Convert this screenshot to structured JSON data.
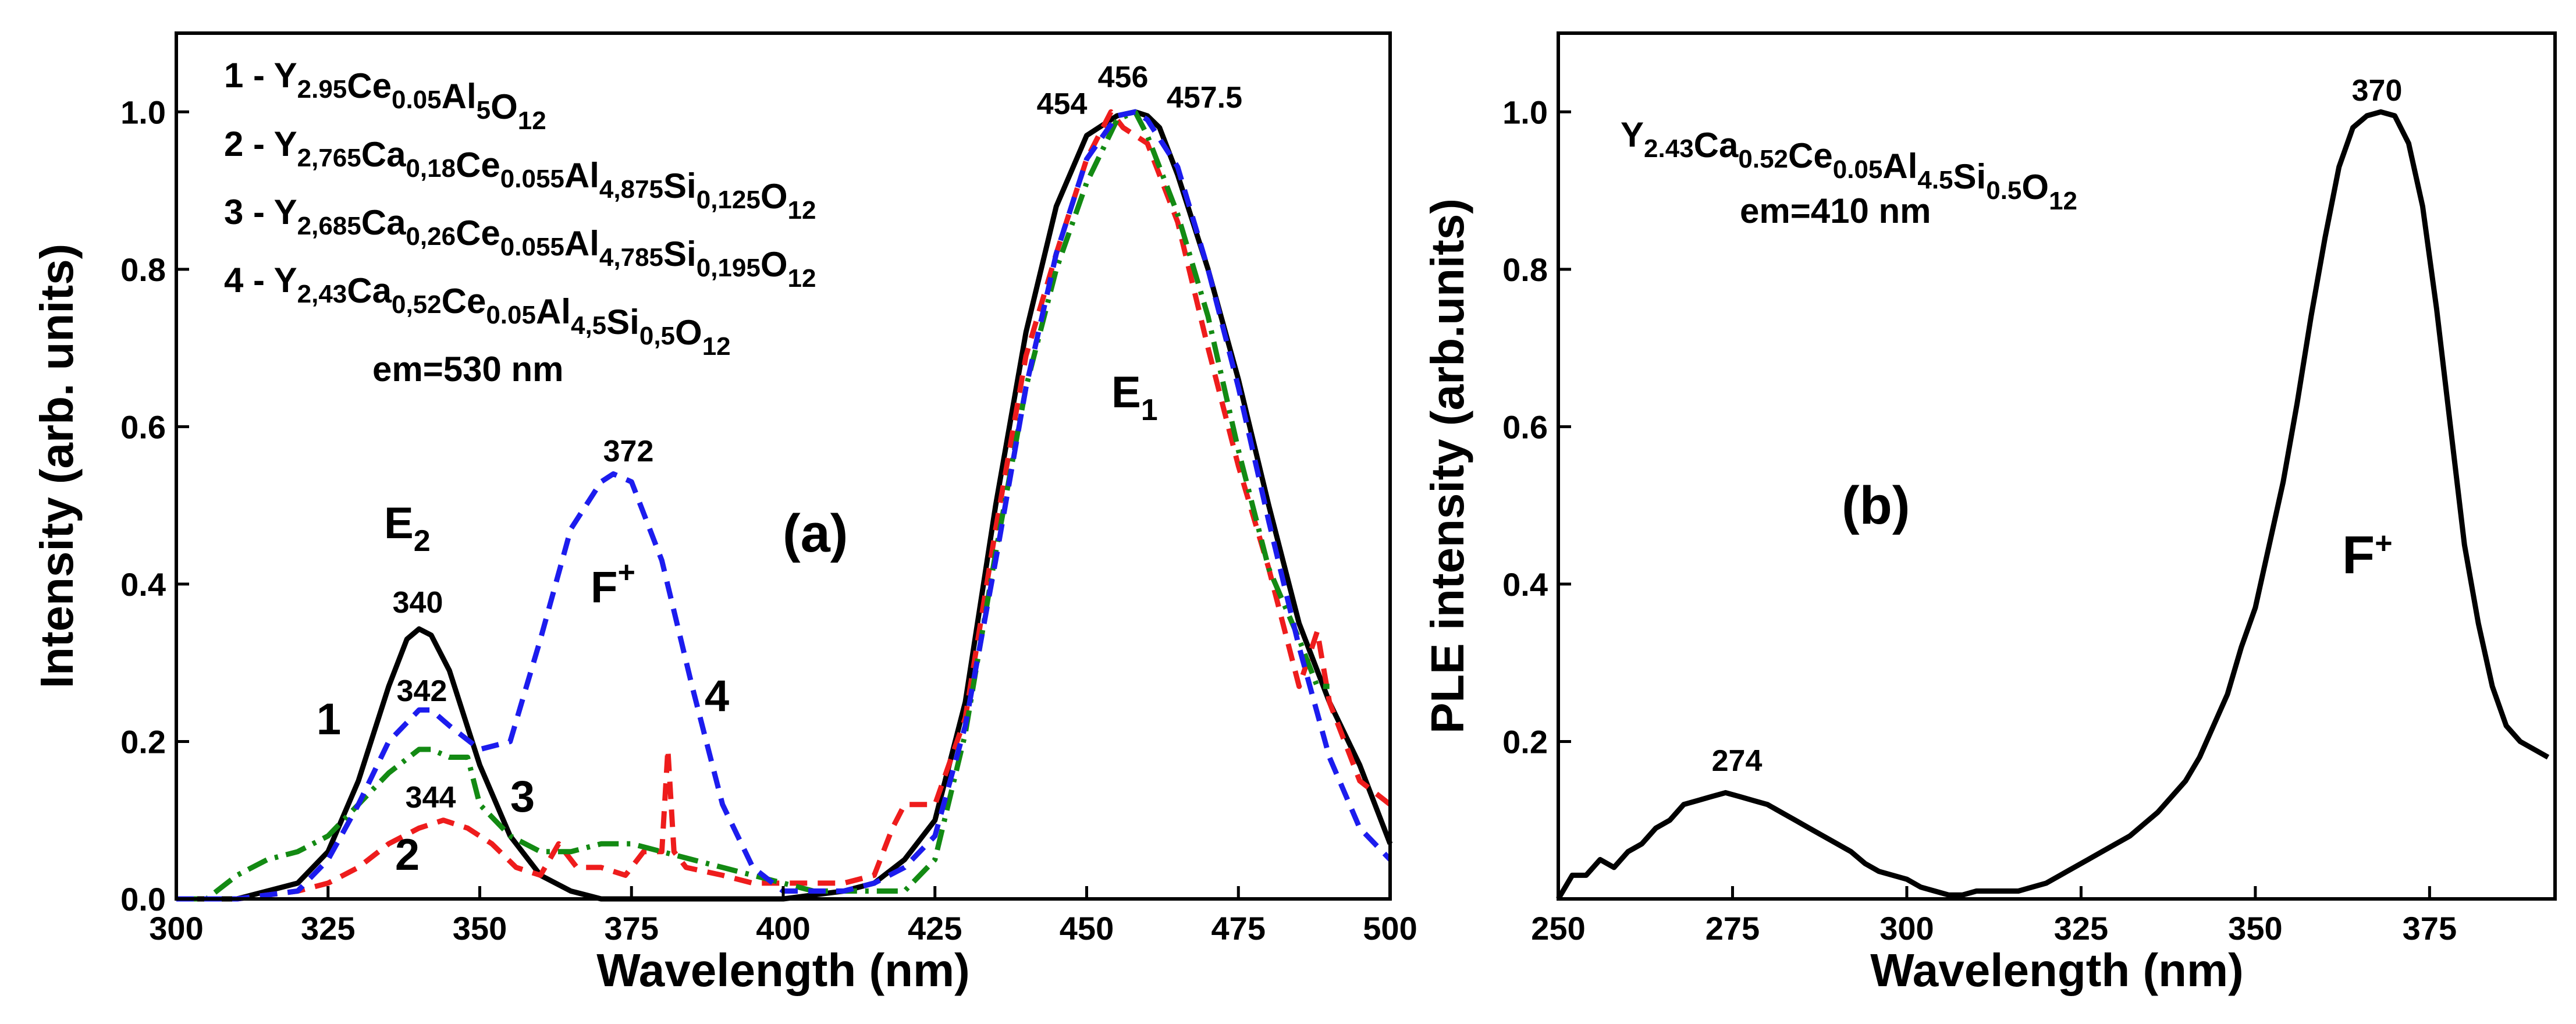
{
  "chart_data": [
    {
      "id": "a",
      "type": "line",
      "panel_label": "(a)",
      "xlabel": "Wavelength (nm)",
      "ylabel": "Intensity (arb. units)",
      "xlim": [
        300,
        500
      ],
      "ylim": [
        0,
        1.1
      ],
      "xticks": [
        "300",
        "325",
        "350",
        "375",
        "400",
        "425",
        "450",
        "475",
        "500"
      ],
      "yticks": [
        "0.0",
        "0.2",
        "0.4",
        "0.6",
        "0.8",
        "1.0"
      ],
      "legend": [
        {
          "num": "1 - ",
          "parts": [
            [
              "Y",
              ""
            ],
            [
              "2.95",
              "sub"
            ],
            [
              "Ce",
              ""
            ],
            [
              "0.05",
              "sub"
            ],
            [
              "Al",
              ""
            ],
            [
              "5",
              "sub"
            ],
            [
              "O",
              ""
            ],
            [
              "12",
              "sub"
            ]
          ]
        },
        {
          "num": "2 - ",
          "parts": [
            [
              "Y",
              ""
            ],
            [
              "2,765",
              "sub"
            ],
            [
              "Ca",
              ""
            ],
            [
              "0,18",
              "sub"
            ],
            [
              "Ce",
              ""
            ],
            [
              "0.055",
              "sub"
            ],
            [
              "Al",
              ""
            ],
            [
              "4,875",
              "sub"
            ],
            [
              "Si",
              ""
            ],
            [
              "0,125",
              "sub"
            ],
            [
              "O",
              ""
            ],
            [
              "12",
              "sub"
            ]
          ]
        },
        {
          "num": "3 - ",
          "parts": [
            [
              "Y",
              ""
            ],
            [
              "2,685",
              "sub"
            ],
            [
              "Ca",
              ""
            ],
            [
              "0,26",
              "sub"
            ],
            [
              "Ce",
              ""
            ],
            [
              "0.055",
              "sub"
            ],
            [
              "Al",
              ""
            ],
            [
              "4,785",
              "sub"
            ],
            [
              "Si",
              ""
            ],
            [
              "0,195",
              "sub"
            ],
            [
              "O",
              ""
            ],
            [
              "12",
              "sub"
            ]
          ]
        },
        {
          "num": "4 - ",
          "parts": [
            [
              "Y",
              ""
            ],
            [
              "2,43",
              "sub"
            ],
            [
              "Ca",
              ""
            ],
            [
              "0,52",
              "sub"
            ],
            [
              "Ce",
              ""
            ],
            [
              "0.05",
              "sub"
            ],
            [
              "Al",
              ""
            ],
            [
              "4,5",
              "sub"
            ],
            [
              "Si",
              ""
            ],
            [
              "0,5",
              "sub"
            ],
            [
              "O",
              ""
            ],
            [
              "12",
              "sub"
            ]
          ]
        }
      ],
      "em_text": "em=530 nm",
      "band_labels": {
        "E2": {
          "main": "E",
          "sub": "2"
        },
        "Fplus": {
          "main": "F",
          "sup": "+"
        },
        "E1": {
          "main": "E",
          "sub": "1"
        }
      },
      "curve_numbers": [
        "1",
        "2",
        "3",
        "4"
      ],
      "peak_labels": [
        "340",
        "342",
        "344",
        "372",
        "454",
        "456",
        "457.5"
      ],
      "series": [
        {
          "name": "1",
          "color": "#000000",
          "dash": "solid",
          "x": [
            300,
            310,
            320,
            325,
            330,
            335,
            338,
            340,
            342,
            345,
            350,
            355,
            360,
            365,
            370,
            380,
            390,
            400,
            410,
            415,
            420,
            425,
            430,
            435,
            440,
            445,
            450,
            455,
            458,
            460,
            462,
            465,
            470,
            475,
            480,
            485,
            490,
            495,
            500
          ],
          "y": [
            0.0,
            0.0,
            0.02,
            0.06,
            0.15,
            0.27,
            0.33,
            0.343,
            0.335,
            0.29,
            0.17,
            0.08,
            0.03,
            0.01,
            0.0,
            0.0,
            0.0,
            0.0,
            0.01,
            0.02,
            0.05,
            0.1,
            0.25,
            0.5,
            0.72,
            0.88,
            0.97,
            0.995,
            1.0,
            0.995,
            0.98,
            0.92,
            0.8,
            0.66,
            0.5,
            0.35,
            0.25,
            0.17,
            0.07
          ]
        },
        {
          "name": "2",
          "color": "#ee1c1c",
          "dash": "dashed",
          "x": [
            300,
            310,
            320,
            325,
            330,
            335,
            340,
            344,
            348,
            352,
            356,
            360,
            363,
            366,
            370,
            374,
            377,
            380,
            381,
            382,
            384,
            390,
            395,
            400,
            410,
            415,
            418,
            420,
            425,
            430,
            435,
            440,
            445,
            450,
            454,
            456,
            460,
            465,
            470,
            475,
            480,
            485,
            488,
            490,
            495,
            500
          ],
          "y": [
            0.0,
            0.0,
            0.01,
            0.02,
            0.04,
            0.07,
            0.09,
            0.1,
            0.09,
            0.07,
            0.04,
            0.03,
            0.07,
            0.04,
            0.04,
            0.03,
            0.06,
            0.06,
            0.19,
            0.06,
            0.04,
            0.03,
            0.02,
            0.02,
            0.02,
            0.03,
            0.09,
            0.12,
            0.12,
            0.23,
            0.47,
            0.69,
            0.82,
            0.94,
            1.0,
            0.98,
            0.96,
            0.86,
            0.7,
            0.55,
            0.42,
            0.27,
            0.34,
            0.25,
            0.15,
            0.12
          ]
        },
        {
          "name": "3",
          "color": "#138a13",
          "dash": "dashdot",
          "x": [
            300,
            305,
            310,
            315,
            320,
            325,
            330,
            335,
            340,
            342,
            345,
            348,
            350,
            355,
            360,
            365,
            370,
            375,
            380,
            385,
            390,
            395,
            400,
            405,
            410,
            415,
            420,
            425,
            430,
            435,
            440,
            445,
            450,
            455,
            458,
            460,
            465,
            470,
            475,
            480,
            485,
            488,
            490
          ],
          "y": [
            0.0,
            0.0,
            0.03,
            0.05,
            0.06,
            0.08,
            0.12,
            0.16,
            0.19,
            0.19,
            0.18,
            0.18,
            0.12,
            0.08,
            0.06,
            0.06,
            0.07,
            0.07,
            0.06,
            0.05,
            0.04,
            0.03,
            0.02,
            0.01,
            0.01,
            0.01,
            0.01,
            0.05,
            0.21,
            0.44,
            0.65,
            0.8,
            0.91,
            0.99,
            1.0,
            0.97,
            0.87,
            0.74,
            0.57,
            0.42,
            0.33,
            0.27,
            0.27
          ]
        },
        {
          "name": "4",
          "color": "#1c1cee",
          "dash": "dashed",
          "x": [
            300,
            310,
            320,
            325,
            330,
            335,
            340,
            342,
            345,
            350,
            355,
            360,
            365,
            370,
            372,
            375,
            380,
            385,
            390,
            395,
            400,
            410,
            415,
            420,
            425,
            430,
            435,
            440,
            445,
            450,
            455,
            458,
            460,
            465,
            470,
            475,
            480,
            485,
            490,
            495,
            500
          ],
          "y": [
            0.0,
            0.0,
            0.01,
            0.05,
            0.12,
            0.2,
            0.24,
            0.24,
            0.22,
            0.19,
            0.2,
            0.33,
            0.47,
            0.53,
            0.54,
            0.53,
            0.43,
            0.27,
            0.12,
            0.04,
            0.01,
            0.01,
            0.02,
            0.04,
            0.08,
            0.22,
            0.43,
            0.65,
            0.82,
            0.94,
            0.995,
            1.0,
            0.99,
            0.93,
            0.8,
            0.65,
            0.48,
            0.32,
            0.18,
            0.09,
            0.05
          ]
        }
      ]
    },
    {
      "id": "b",
      "type": "line",
      "panel_label": "(b)",
      "xlabel": "Wavelength (nm)",
      "ylabel": "PLE intensity (arb.units)",
      "xlim": [
        250,
        393
      ],
      "ylim": [
        0,
        1.1
      ],
      "xticks": [
        "250",
        "275",
        "300",
        "325",
        "350",
        "375"
      ],
      "yticks": [
        "0.2",
        "0.4",
        "0.6",
        "0.8",
        "1.0"
      ],
      "formula": [
        [
          "Y",
          ""
        ],
        [
          "2.43",
          "sub"
        ],
        [
          "Ca",
          ""
        ],
        [
          "0.52",
          "sub"
        ],
        [
          "Ce",
          ""
        ],
        [
          "0.05",
          "sub"
        ],
        [
          "Al",
          ""
        ],
        [
          "4.5",
          "sub"
        ],
        [
          "Si",
          ""
        ],
        [
          "0.5",
          "sub"
        ],
        [
          "O",
          ""
        ],
        [
          "12",
          "sub"
        ]
      ],
      "em_text": "em=410 nm",
      "band_label": {
        "main": "F",
        "sup": "+"
      },
      "peak_labels": [
        "274",
        "370"
      ],
      "series": [
        {
          "name": "PLE",
          "color": "#000000",
          "dash": "solid",
          "x": [
            250,
            252,
            254,
            256,
            258,
            260,
            262,
            264,
            266,
            268,
            270,
            272,
            274,
            276,
            278,
            280,
            282,
            284,
            286,
            288,
            290,
            292,
            294,
            296,
            298,
            300,
            302,
            304,
            306,
            308,
            310,
            312,
            314,
            316,
            318,
            320,
            322,
            324,
            326,
            328,
            330,
            332,
            334,
            336,
            338,
            340,
            342,
            344,
            346,
            348,
            350,
            352,
            354,
            356,
            358,
            360,
            362,
            364,
            366,
            368,
            370,
            372,
            374,
            376,
            378,
            380,
            382,
            384,
            386,
            388,
            390,
            392
          ],
          "y": [
            0.0,
            0.03,
            0.03,
            0.05,
            0.04,
            0.06,
            0.07,
            0.09,
            0.1,
            0.12,
            0.125,
            0.13,
            0.135,
            0.13,
            0.125,
            0.12,
            0.11,
            0.1,
            0.09,
            0.08,
            0.07,
            0.06,
            0.045,
            0.035,
            0.03,
            0.025,
            0.015,
            0.01,
            0.005,
            0.005,
            0.01,
            0.01,
            0.01,
            0.01,
            0.015,
            0.02,
            0.03,
            0.04,
            0.05,
            0.06,
            0.07,
            0.08,
            0.095,
            0.11,
            0.13,
            0.15,
            0.18,
            0.22,
            0.26,
            0.32,
            0.37,
            0.45,
            0.53,
            0.63,
            0.74,
            0.84,
            0.93,
            0.98,
            0.995,
            1.0,
            0.995,
            0.96,
            0.88,
            0.75,
            0.6,
            0.45,
            0.35,
            0.27,
            0.22,
            0.2,
            0.19,
            0.18
          ]
        }
      ]
    }
  ]
}
